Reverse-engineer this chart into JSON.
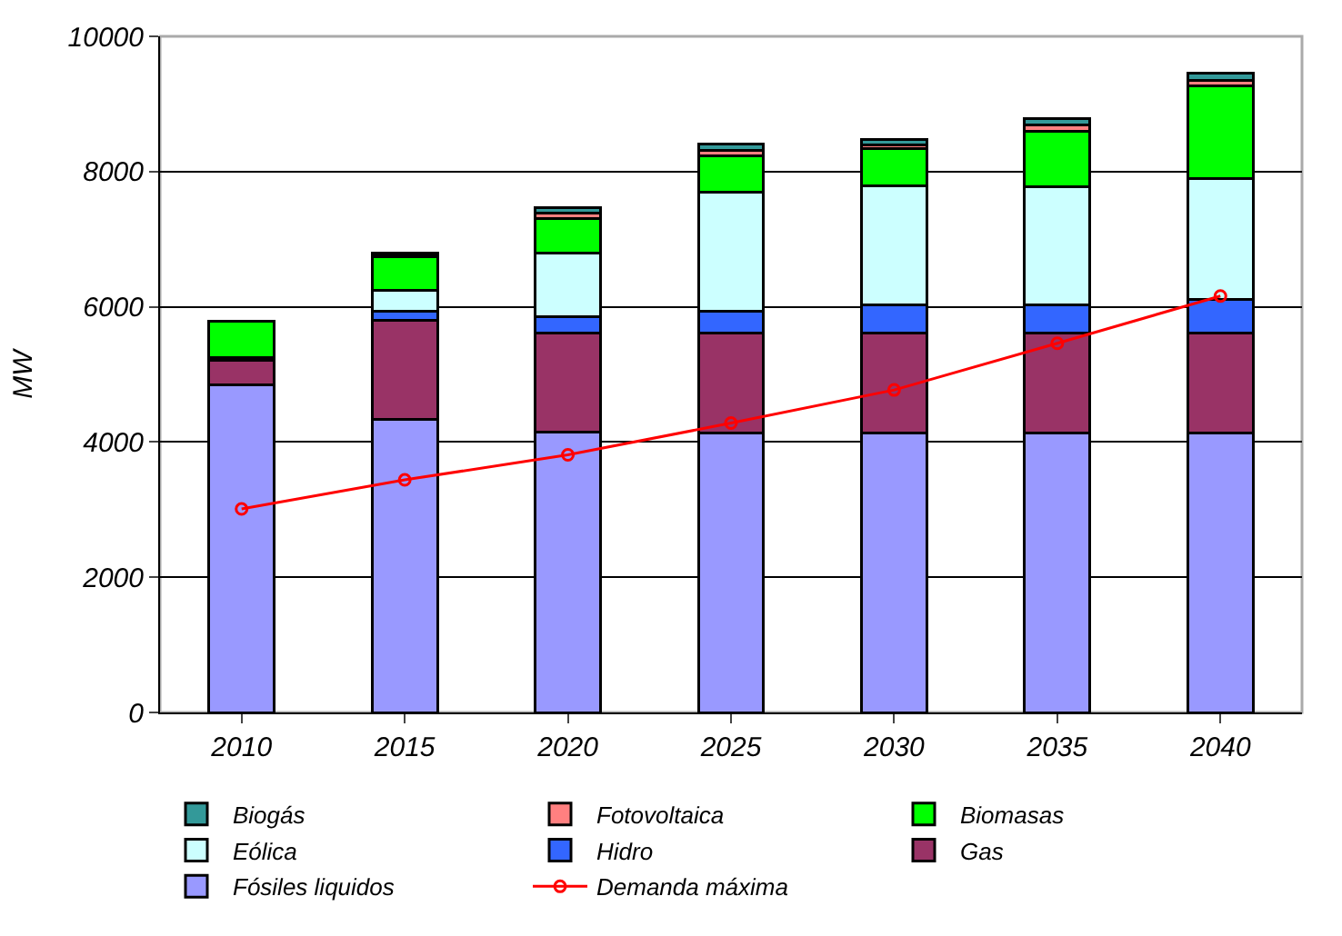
{
  "chart_data": {
    "type": "bar",
    "stacked": true,
    "ylabel": "MW",
    "categories": [
      "2010",
      "2015",
      "2020",
      "2025",
      "2030",
      "2035",
      "2040"
    ],
    "ylim": [
      0,
      10000
    ],
    "yticks": [
      0,
      2000,
      4000,
      6000,
      8000,
      10000
    ],
    "grid": "y",
    "legend": "bottom",
    "series": [
      {
        "name": "Fósiles liquidos",
        "color": "#9999ff",
        "values": [
          4840,
          4340,
          4140,
          4130,
          4130,
          4130,
          4130
        ]
      },
      {
        "name": "Gas",
        "color": "#993366",
        "values": [
          370,
          1460,
          1470,
          1480,
          1480,
          1480,
          1480
        ]
      },
      {
        "name": "Hidro",
        "color": "#3366ff",
        "values": [
          40,
          130,
          250,
          320,
          420,
          420,
          500
        ]
      },
      {
        "name": "Eólica",
        "color": "#ccffff",
        "values": [
          null,
          310,
          930,
          1760,
          1760,
          1740,
          1780
        ]
      },
      {
        "name": "Biomasas",
        "color": "#00ff00",
        "values": [
          530,
          500,
          520,
          540,
          550,
          820,
          1380
        ]
      },
      {
        "name": "Fotovoltaica",
        "color": "#ff8080",
        "values": [
          null,
          20,
          70,
          80,
          60,
          100,
          80
        ]
      },
      {
        "name": "Biogás",
        "color": "#339999",
        "values": [
          null,
          30,
          80,
          100,
          80,
          100,
          100
        ]
      },
      {
        "name": "Demanda máxima",
        "type": "line",
        "color": "#ff0000",
        "marker": "circle",
        "values": [
          3010,
          3440,
          3810,
          4280,
          4770,
          5460,
          6160
        ]
      }
    ]
  }
}
